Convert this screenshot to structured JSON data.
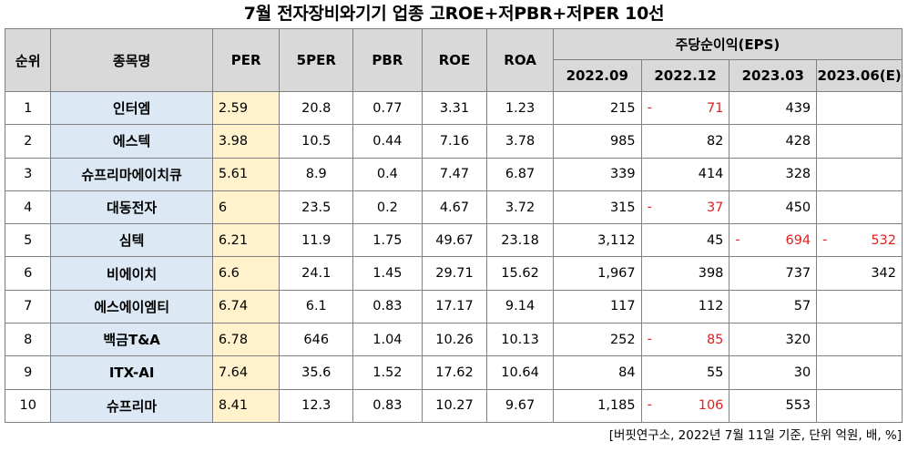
{
  "title": "7월  전자장비와기기 업종 고ROE+저PBR+저PER 10선",
  "headers": {
    "rank": "순위",
    "name": "종목명",
    "per": "PER",
    "per5": "5PER",
    "pbr": "PBR",
    "roe": "ROE",
    "roa": "ROA",
    "eps_group": "주당순이익(EPS)",
    "eps_periods": [
      "2022.09",
      "2022.12",
      "2023.03",
      "2023.06(E)"
    ]
  },
  "rows": [
    {
      "rank": "1",
      "name": "인터엠",
      "per": "2.59",
      "per5": "20.8",
      "pbr": "0.77",
      "roe": "3.31",
      "roa": "1.23",
      "eps": [
        {
          "v": "215",
          "neg": false
        },
        {
          "v": "71",
          "neg": true
        },
        {
          "v": "439",
          "neg": false
        },
        {
          "v": "",
          "neg": false
        }
      ]
    },
    {
      "rank": "2",
      "name": "에스텍",
      "per": "3.98",
      "per5": "10.5",
      "pbr": "0.44",
      "roe": "7.16",
      "roa": "3.78",
      "eps": [
        {
          "v": "985",
          "neg": false
        },
        {
          "v": "82",
          "neg": false
        },
        {
          "v": "428",
          "neg": false
        },
        {
          "v": "",
          "neg": false
        }
      ]
    },
    {
      "rank": "3",
      "name": "슈프리마에이치큐",
      "per": "5.61",
      "per5": "8.9",
      "pbr": "0.4",
      "roe": "7.47",
      "roa": "6.87",
      "eps": [
        {
          "v": "339",
          "neg": false
        },
        {
          "v": "414",
          "neg": false
        },
        {
          "v": "328",
          "neg": false
        },
        {
          "v": "",
          "neg": false
        }
      ]
    },
    {
      "rank": "4",
      "name": "대동전자",
      "per": "6",
      "per5": "23.5",
      "pbr": "0.2",
      "roe": "4.67",
      "roa": "3.72",
      "eps": [
        {
          "v": "315",
          "neg": false
        },
        {
          "v": "37",
          "neg": true
        },
        {
          "v": "450",
          "neg": false
        },
        {
          "v": "",
          "neg": false
        }
      ]
    },
    {
      "rank": "5",
      "name": "심텍",
      "per": "6.21",
      "per5": "11.9",
      "pbr": "1.75",
      "roe": "49.67",
      "roa": "23.18",
      "eps": [
        {
          "v": "3,112",
          "neg": false
        },
        {
          "v": "45",
          "neg": false
        },
        {
          "v": "694",
          "neg": true
        },
        {
          "v": "532",
          "neg": true
        }
      ]
    },
    {
      "rank": "6",
      "name": "비에이치",
      "per": "6.6",
      "per5": "24.1",
      "pbr": "1.45",
      "roe": "29.71",
      "roa": "15.62",
      "eps": [
        {
          "v": "1,967",
          "neg": false
        },
        {
          "v": "398",
          "neg": false
        },
        {
          "v": "737",
          "neg": false
        },
        {
          "v": "342",
          "neg": false
        }
      ]
    },
    {
      "rank": "7",
      "name": "에스에이엠티",
      "per": "6.74",
      "per5": "6.1",
      "pbr": "0.83",
      "roe": "17.17",
      "roa": "9.14",
      "eps": [
        {
          "v": "117",
          "neg": false
        },
        {
          "v": "112",
          "neg": false
        },
        {
          "v": "57",
          "neg": false
        },
        {
          "v": "",
          "neg": false
        }
      ]
    },
    {
      "rank": "8",
      "name": "백금T&A",
      "per": "6.78",
      "per5": "646",
      "pbr": "1.04",
      "roe": "10.26",
      "roa": "10.13",
      "eps": [
        {
          "v": "252",
          "neg": false
        },
        {
          "v": "85",
          "neg": true
        },
        {
          "v": "320",
          "neg": false
        },
        {
          "v": "",
          "neg": false
        }
      ]
    },
    {
      "rank": "9",
      "name": "ITX-AI",
      "per": "7.64",
      "per5": "35.6",
      "pbr": "1.52",
      "roe": "17.62",
      "roa": "10.64",
      "eps": [
        {
          "v": "84",
          "neg": false
        },
        {
          "v": "55",
          "neg": false
        },
        {
          "v": "30",
          "neg": false
        },
        {
          "v": "",
          "neg": false
        }
      ]
    },
    {
      "rank": "10",
      "name": "슈프리마",
      "per": "8.41",
      "per5": "12.3",
      "pbr": "0.83",
      "roe": "10.27",
      "roa": "9.67",
      "eps": [
        {
          "v": "1,185",
          "neg": false
        },
        {
          "v": "106",
          "neg": true
        },
        {
          "v": "553",
          "neg": false
        },
        {
          "v": "",
          "neg": false
        }
      ]
    }
  ],
  "negative_marker": "-",
  "source": "[버핏연구소, 2022년 7월 11일 기준, 단위 억원, 배, %]",
  "colors": {
    "header_bg": "#d9d9d9",
    "name_bg": "#dce9f5",
    "per_bg": "#fff2cc",
    "negative": "#e02020"
  }
}
